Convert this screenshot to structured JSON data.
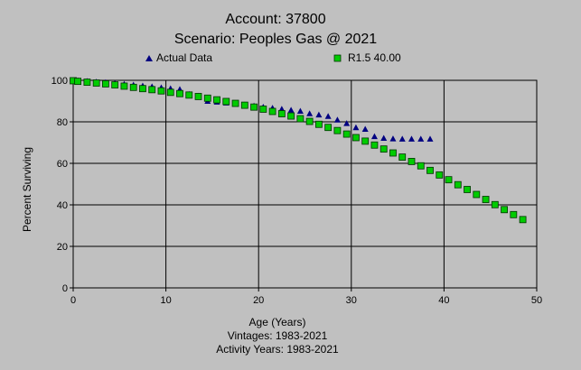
{
  "chart_data": {
    "type": "scatter",
    "title": "Account: 37800",
    "subtitle": "Scenario: Peoples Gas @ 2021",
    "xlabel": "Age (Years)",
    "ylabel": "Percent Surviving",
    "footnotes": [
      "Vintages: 1983-2021",
      "Activity Years: 1983-2021"
    ],
    "xlim": [
      0,
      50
    ],
    "ylim": [
      0,
      100
    ],
    "xticks": [
      "0",
      "10",
      "20",
      "30",
      "40",
      "50"
    ],
    "yticks": [
      "0",
      "20",
      "40",
      "60",
      "80",
      "100"
    ],
    "grid": true,
    "legend_position": "top",
    "series": [
      {
        "name": "Actual Data",
        "marker": "triangle",
        "color": "#000080",
        "x": [
          0,
          0.5,
          1.5,
          2.5,
          3.5,
          4.5,
          5.5,
          6.5,
          7.5,
          8.5,
          9.5,
          10.5,
          11.5,
          12.5,
          13.5,
          14.5,
          15.5,
          16.5,
          17.5,
          18.5,
          19.5,
          20.5,
          21.5,
          22.5,
          23.5,
          24.5,
          25.5,
          26.5,
          27.5,
          28.5,
          29.5,
          30.5,
          31.5,
          32.5,
          33.5,
          34.5,
          35.5,
          36.5,
          37.5,
          38.5
        ],
        "y": [
          100,
          99.9,
          99.6,
          99.3,
          99.0,
          98.6,
          98.2,
          97.8,
          97.4,
          97.0,
          96.5,
          96.1,
          95.7,
          93.3,
          92.5,
          90.0,
          89.6,
          89.2,
          88.7,
          88.2,
          87.7,
          87.2,
          86.7,
          86.2,
          85.7,
          85.2,
          84.0,
          83.4,
          82.7,
          81.0,
          79.3,
          77.3,
          76.5,
          73.0,
          72.2,
          71.9,
          71.8,
          71.8,
          71.8,
          71.8
        ]
      },
      {
        "name": "R1.5 40.00",
        "marker": "square",
        "color": "#00cc00",
        "x": [
          0,
          0.5,
          1.5,
          2.5,
          3.5,
          4.5,
          5.5,
          6.5,
          7.5,
          8.5,
          9.5,
          10.5,
          11.5,
          12.5,
          13.5,
          14.5,
          15.5,
          16.5,
          17.5,
          18.5,
          19.5,
          20.5,
          21.5,
          22.5,
          23.5,
          24.5,
          25.5,
          26.5,
          27.5,
          28.5,
          29.5,
          30.5,
          31.5,
          32.5,
          33.5,
          34.5,
          35.5,
          36.5,
          37.5,
          38.5,
          39.5,
          40.5,
          41.5,
          42.5,
          43.5,
          44.5,
          45.5,
          46.5,
          47.5,
          48.5
        ],
        "y": [
          99.8,
          99.5,
          99.1,
          98.7,
          98.3,
          97.8,
          97.2,
          96.6,
          96.0,
          95.5,
          94.9,
          94.2,
          93.6,
          92.9,
          92.2,
          91.4,
          90.6,
          89.8,
          88.9,
          88.0,
          87.1,
          86.1,
          85.0,
          83.9,
          82.8,
          81.5,
          80.2,
          78.8,
          77.3,
          75.8,
          74.1,
          72.4,
          70.7,
          68.8,
          66.9,
          65.0,
          63.0,
          60.9,
          58.8,
          56.6,
          54.4,
          52.1,
          49.7,
          47.4,
          45.0,
          42.6,
          40.1,
          37.7,
          35.3,
          32.9
        ]
      }
    ]
  }
}
